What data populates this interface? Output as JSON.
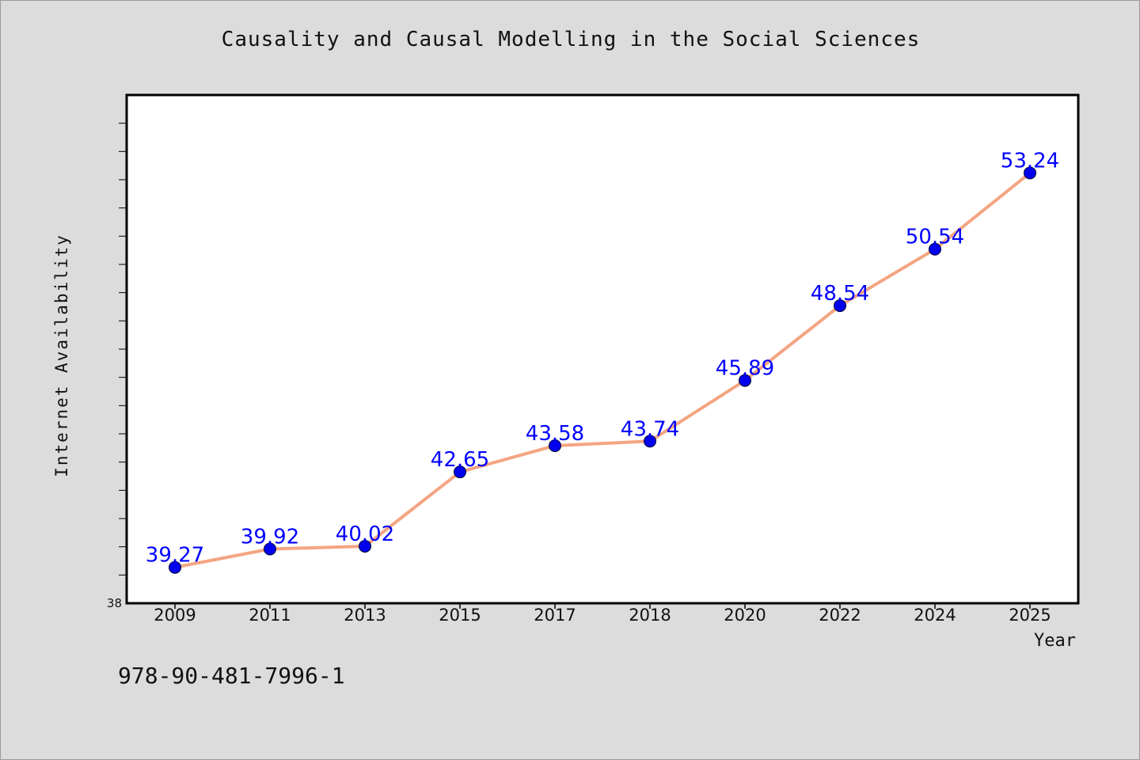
{
  "colors": {
    "background": "#dcdcdc",
    "plot_background": "#ffffff",
    "line": "#f4a582",
    "marker": "#0000ee",
    "data_label": "#0000ff",
    "text": "#111111"
  },
  "footer": {
    "isbn": "978-90-481-7996-1"
  },
  "chart_data": {
    "type": "line",
    "title": "Causality and Causal Modelling in the Social Sciences",
    "xlabel": "Year",
    "ylabel": "Internet Availability",
    "categories": [
      "2009",
      "2011",
      "2013",
      "2015",
      "2017",
      "2018",
      "2020",
      "2022",
      "2024",
      "2025"
    ],
    "series": [
      {
        "values": [
          39.27,
          39.92,
          40.02,
          42.65,
          43.58,
          43.74,
          45.89,
          48.54,
          50.54,
          53.24
        ]
      }
    ],
    "data_labels": [
      "39.27",
      "39.92",
      "40.02",
      "42.65",
      "43.58",
      "43.74",
      "45.89",
      "48.54",
      "50.54",
      "53.24"
    ],
    "y_tick_labels": [
      "38"
    ],
    "ylim": [
      38,
      56
    ],
    "y_minor_tick_step": 1,
    "grid": false,
    "legend": "none"
  }
}
